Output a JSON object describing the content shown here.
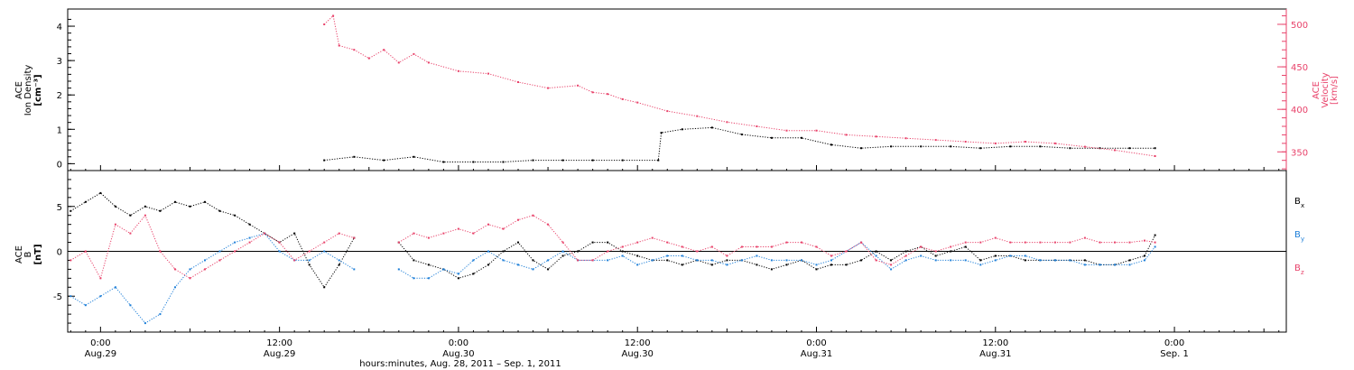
{
  "colors": {
    "black": "#000000",
    "pink": "#e8426a",
    "blue": "#1e7fd8"
  },
  "xlabel": "hours:minutes, Aug. 28, 2011 – Sep.  1, 2011",
  "x_ticks": [
    {
      "time": "0:00",
      "date": "Aug.29",
      "hours": 0
    },
    {
      "time": "12:00",
      "date": "Aug.29",
      "hours": 12
    },
    {
      "time": "0:00",
      "date": "Aug.30",
      "hours": 24
    },
    {
      "time": "12:00",
      "date": "Aug.30",
      "hours": 36
    },
    {
      "time": "0:00",
      "date": "Aug.31",
      "hours": 48
    },
    {
      "time": "12:00",
      "date": "Aug.31",
      "hours": 60
    },
    {
      "time": "0:00",
      "date": "Sep. 1",
      "hours": 72
    }
  ],
  "chart_data": [
    {
      "type": "scatter",
      "panel": "top",
      "xlim_hours": [
        -2.2,
        79.5
      ],
      "left_axis": {
        "label_lines": [
          "ACE",
          "Ion Density",
          "[cm⁻³]"
        ],
        "ylim": [
          -0.2,
          4.5
        ],
        "ticks": [
          0,
          1,
          2,
          3,
          4
        ]
      },
      "right_axis": {
        "label_lines": [
          "ACE",
          "Velocity",
          "[km/s]"
        ],
        "ylim": [
          328,
          518
        ],
        "ticks": [
          350,
          400,
          450,
          500
        ]
      },
      "series": [
        {
          "color": "black",
          "axis": "left",
          "x_hours": [
            15,
            17,
            19,
            21,
            23,
            25,
            27,
            29,
            31,
            33,
            35,
            37.4,
            37.6,
            39,
            41,
            43,
            45,
            47,
            49,
            51,
            53,
            55,
            57,
            59,
            61,
            63,
            65,
            67,
            69,
            70.7
          ],
          "y": [
            0.1,
            0.2,
            0.1,
            0.2,
            0.05,
            0.05,
            0.05,
            0.1,
            0.1,
            0.1,
            0.1,
            0.1,
            0.9,
            1.0,
            1.05,
            0.85,
            0.75,
            0.75,
            0.55,
            0.45,
            0.5,
            0.5,
            0.5,
            0.45,
            0.5,
            0.5,
            0.45,
            0.45,
            0.45,
            0.45
          ]
        },
        {
          "color": "pink",
          "axis": "right",
          "x_hours": [
            15,
            15.6,
            16,
            17,
            18,
            19,
            20,
            21,
            22,
            24,
            26,
            28,
            30,
            32,
            33,
            34,
            35,
            36,
            38,
            40,
            42,
            44,
            46,
            48,
            50,
            52,
            54,
            56,
            58,
            60,
            62,
            64,
            66,
            68,
            70.7
          ],
          "y": [
            500,
            510,
            475,
            470,
            460,
            470,
            455,
            465,
            455,
            445,
            442,
            432,
            425,
            428,
            420,
            418,
            412,
            408,
            398,
            392,
            385,
            380,
            375,
            375,
            370,
            368,
            366,
            364,
            362,
            360,
            362,
            360,
            356,
            352,
            345
          ]
        }
      ]
    },
    {
      "type": "scatter",
      "panel": "bottom",
      "xlim_hours": [
        -2.2,
        79.5
      ],
      "left_axis": {
        "label_lines": [
          "ACE",
          "B",
          "[nT]"
        ],
        "ylim": [
          -9,
          9
        ],
        "ticks": [
          -5,
          0,
          5
        ]
      },
      "series": [
        {
          "name": "B",
          "sub": "x",
          "color": "black",
          "x_hours": [
            -2,
            -1,
            0,
            1,
            2,
            3,
            4,
            5,
            6,
            7,
            8,
            9,
            10,
            11,
            12,
            13,
            14,
            15,
            16,
            17,
            19,
            20,
            21,
            22,
            23,
            24,
            25,
            26,
            27,
            28,
            29,
            30,
            31,
            32,
            33,
            34,
            35,
            36,
            37,
            38,
            39,
            40,
            41,
            42,
            43,
            44,
            45,
            46,
            47,
            48,
            49,
            50,
            51,
            52,
            53,
            54,
            55,
            56,
            57,
            58,
            59,
            60,
            61,
            62,
            63,
            64,
            65,
            66,
            67,
            68,
            69,
            70,
            70.7
          ],
          "y": [
            4.5,
            5.5,
            6.5,
            5,
            4,
            5,
            4.5,
            5.5,
            5,
            5.5,
            4.5,
            4,
            3,
            2,
            1,
            2,
            -1.5,
            -4,
            -1.5,
            1.5,
            null,
            1,
            -1,
            -1.5,
            -2,
            -3,
            -2.5,
            -1.5,
            0,
            1,
            -1,
            -2,
            -0.5,
            0,
            1,
            1,
            0,
            -0.5,
            -1,
            -1,
            -1.5,
            -1,
            -1.5,
            -1,
            -1,
            -1.5,
            -2,
            -1.5,
            -1,
            -2,
            -1.5,
            -1.5,
            -1,
            0,
            -1,
            0,
            0.5,
            -0.5,
            0,
            0.5,
            -1,
            -0.5,
            -0.5,
            -1,
            -1,
            -1,
            -1,
            -1,
            -1.5,
            -1.5,
            -1,
            -0.5,
            1.8
          ]
        },
        {
          "name": "B",
          "sub": "y",
          "color": "blue",
          "x_hours": [
            -2,
            -1,
            0,
            1,
            2,
            3,
            4,
            5,
            6,
            7,
            8,
            9,
            10,
            11,
            12,
            13,
            14,
            15,
            16,
            17,
            19,
            20,
            21,
            22,
            23,
            24,
            25,
            26,
            27,
            28,
            29,
            30,
            31,
            32,
            33,
            34,
            35,
            36,
            37,
            38,
            39,
            40,
            41,
            42,
            43,
            44,
            45,
            46,
            47,
            48,
            49,
            50,
            51,
            52,
            53,
            54,
            55,
            56,
            57,
            58,
            59,
            60,
            61,
            62,
            63,
            64,
            65,
            66,
            67,
            68,
            69,
            70,
            70.7
          ],
          "y": [
            -5,
            -6,
            -5,
            -4,
            -6,
            -8,
            -7,
            -4,
            -2,
            -1,
            0,
            1,
            1.5,
            2,
            0,
            -1,
            -1,
            0,
            -1,
            -2,
            null,
            -2,
            -3,
            -3,
            -2,
            -2.5,
            -1,
            0,
            -1,
            -1.5,
            -2,
            -1,
            0,
            -1,
            -1,
            -1,
            -0.5,
            -1.5,
            -1,
            -0.5,
            -0.5,
            -1,
            -1,
            -1.5,
            -1,
            -0.5,
            -1,
            -1,
            -1,
            -1.5,
            -1,
            0,
            1,
            -0.5,
            -2,
            -1,
            -0.5,
            -1,
            -1,
            -1,
            -1.5,
            -1,
            -0.5,
            -0.5,
            -1,
            -1,
            -1,
            -1.5,
            -1.5,
            -1.5,
            -1.5,
            -1,
            0.5
          ]
        },
        {
          "name": "B",
          "sub": "z",
          "color": "pink",
          "x_hours": [
            -2,
            -1,
            0,
            1,
            2,
            3,
            4,
            5,
            6,
            7,
            8,
            9,
            10,
            11,
            12,
            13,
            14,
            15,
            16,
            17,
            19,
            20,
            21,
            22,
            23,
            24,
            25,
            26,
            27,
            28,
            29,
            30,
            31,
            32,
            33,
            34,
            35,
            36,
            37,
            38,
            39,
            40,
            41,
            42,
            43,
            44,
            45,
            46,
            47,
            48,
            49,
            50,
            51,
            52,
            53,
            54,
            55,
            56,
            57,
            58,
            59,
            60,
            61,
            62,
            63,
            64,
            65,
            66,
            67,
            68,
            69,
            70,
            70.7
          ],
          "y": [
            -1,
            0,
            -3,
            3,
            2,
            4,
            0,
            -2,
            -3,
            -2,
            -1,
            0,
            1,
            2,
            1,
            -1,
            0,
            1,
            2,
            1.5,
            null,
            1,
            2,
            1.5,
            2,
            2.5,
            2,
            3,
            2.5,
            3.5,
            4,
            3,
            1,
            -1,
            -1,
            0,
            0.5,
            1,
            1.5,
            1,
            0.5,
            0,
            0.5,
            -0.5,
            0.5,
            0.5,
            0.5,
            1,
            1,
            0.5,
            -0.5,
            0,
            1,
            -1,
            -1.5,
            -0.5,
            0.5,
            0,
            0.5,
            1,
            1,
            1.5,
            1,
            1,
            1,
            1,
            1,
            1.5,
            1,
            1,
            1,
            1.2,
            1
          ]
        }
      ]
    }
  ]
}
